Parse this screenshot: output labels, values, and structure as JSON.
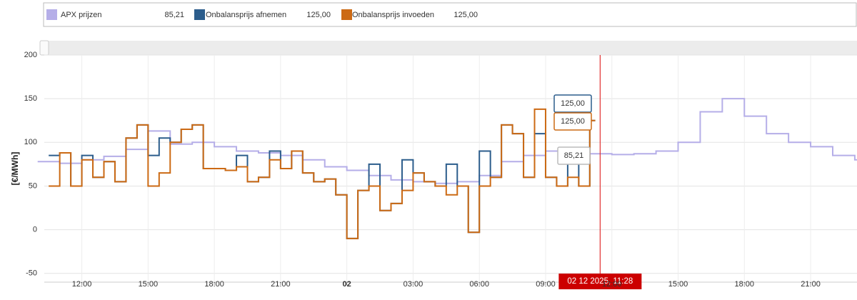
{
  "chart_data": {
    "type": "step",
    "y_axis_label": "[€/MWh]",
    "ylim": [
      -60,
      200
    ],
    "yticks": [
      -50,
      0,
      50,
      100,
      150,
      200
    ],
    "xlim": [
      10.3,
      47.1
    ],
    "xticks": [
      {
        "value": 12,
        "label": "12:00"
      },
      {
        "value": 15,
        "label": "15:00"
      },
      {
        "value": 18,
        "label": "18:00"
      },
      {
        "value": 21,
        "label": "21:00"
      },
      {
        "value": 24,
        "label": "02"
      },
      {
        "value": 27,
        "label": "03:00"
      },
      {
        "value": 30,
        "label": "06:00"
      },
      {
        "value": 33,
        "label": "09:00"
      },
      {
        "value": 36,
        "label": "12:00"
      },
      {
        "value": 39,
        "label": "15:00"
      },
      {
        "value": 42,
        "label": "18:00"
      },
      {
        "value": 45,
        "label": "21:00"
      }
    ],
    "grid": true,
    "cursor": {
      "x": 35.47,
      "label": "02 12 2025, 11:28"
    },
    "tooltips": [
      "125,00",
      "125,00",
      "85,21"
    ],
    "series": [
      {
        "name": "APX prijzen",
        "legend_value": "85,21",
        "color": "#b5aee8",
        "x": [
          10,
          11,
          12,
          13,
          14,
          15,
          16,
          17,
          18,
          19,
          20,
          21,
          22,
          23,
          24,
          25,
          26,
          27,
          28,
          29,
          30,
          31,
          32,
          33,
          34,
          35,
          36,
          37,
          38,
          39,
          40,
          41,
          42,
          43,
          44,
          45,
          46,
          47
        ],
        "values": [
          78,
          76,
          80,
          84,
          92,
          113,
          98,
          100,
          95,
          90,
          88,
          85,
          80,
          72,
          68,
          62,
          57,
          55,
          53,
          55,
          62,
          78,
          85,
          90,
          92,
          87,
          86,
          87,
          90,
          100,
          135,
          150,
          130,
          110,
          100,
          95,
          85,
          80
        ]
      },
      {
        "name": "Onbalansprijs afnemen",
        "legend_value": "125,00",
        "color": "#2c5d8c",
        "x": [
          10.5,
          11,
          11.5,
          12,
          12.5,
          13,
          13.5,
          14,
          14.5,
          15,
          15.5,
          16,
          16.5,
          17,
          17.5,
          18,
          18.5,
          19,
          19.5,
          20,
          20.5,
          21,
          21.5,
          22,
          22.5,
          23,
          23.5,
          24,
          24.5,
          25,
          25.5,
          26,
          26.5,
          27,
          27.5,
          28,
          28.5,
          29,
          29.5,
          30,
          30.5,
          31,
          31.5,
          32,
          32.5,
          33,
          33.5,
          34,
          34.5,
          35
        ],
        "values": [
          85,
          88,
          50,
          85,
          60,
          78,
          55,
          105,
          120,
          85,
          105,
          100,
          115,
          120,
          70,
          70,
          68,
          85,
          55,
          60,
          90,
          70,
          90,
          65,
          55,
          58,
          40,
          -10,
          45,
          75,
          22,
          30,
          80,
          65,
          55,
          50,
          75,
          50,
          -3,
          90,
          60,
          120,
          110,
          60,
          110,
          60,
          50,
          90,
          50,
          125
        ]
      },
      {
        "name": "Onbalansprijs invoeden",
        "legend_value": "125,00",
        "color": "#cc6a14",
        "x": [
          10.5,
          11,
          11.5,
          12,
          12.5,
          13,
          13.5,
          14,
          14.5,
          15,
          15.5,
          16,
          16.5,
          17,
          17.5,
          18,
          18.5,
          19,
          19.5,
          20,
          20.5,
          21,
          21.5,
          22,
          22.5,
          23,
          23.5,
          24,
          24.5,
          25,
          25.5,
          26,
          26.5,
          27,
          27.5,
          28,
          28.5,
          29,
          29.5,
          30,
          30.5,
          31,
          31.5,
          32,
          32.5,
          33,
          33.5,
          34,
          34.5,
          35
        ],
        "values": [
          50,
          88,
          50,
          80,
          60,
          78,
          55,
          105,
          120,
          50,
          65,
          100,
          115,
          120,
          70,
          70,
          68,
          72,
          55,
          60,
          80,
          70,
          90,
          65,
          55,
          58,
          40,
          -10,
          45,
          50,
          22,
          30,
          45,
          65,
          55,
          50,
          40,
          50,
          -3,
          50,
          60,
          120,
          110,
          60,
          138,
          60,
          50,
          60,
          50,
          125
        ]
      }
    ]
  }
}
